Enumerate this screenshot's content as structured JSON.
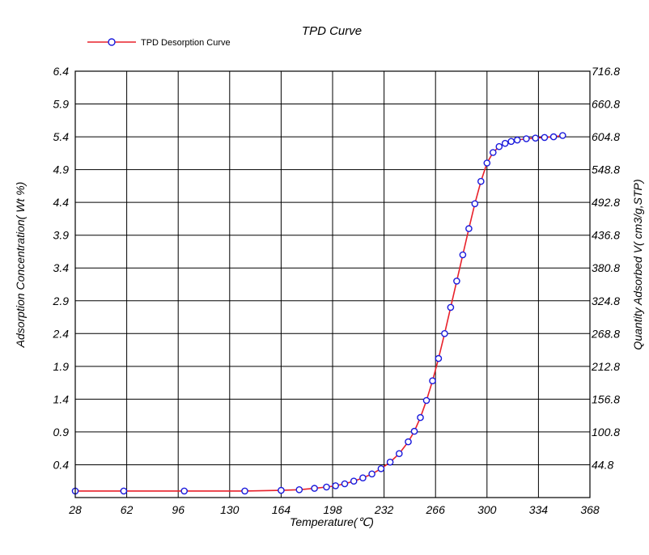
{
  "chart_data": {
    "type": "line",
    "title": "TPD Curve",
    "xlabel": "Temperature(℃)",
    "ylabel": "Adsorption Concentration( Wt %)",
    "y2label": "Quantity Adsorbed V( cm3/g,STP)",
    "xlim": [
      28,
      368
    ],
    "ylim": [
      -0.1,
      6.4
    ],
    "y2lim": [
      -11.2,
      716.8
    ],
    "x_ticks": [
      "28",
      "62",
      "96",
      "130",
      "164",
      "198",
      "232",
      "266",
      "300",
      "334",
      "368"
    ],
    "y_ticks": [
      "6.4",
      "5.9",
      "5.4",
      "4.9",
      "4.4",
      "3.9",
      "3.4",
      "2.9",
      "2.4",
      "1.9",
      "1.4",
      "0.9",
      "0.4"
    ],
    "y2_ticks": [
      "716.8",
      "660.8",
      "604.8",
      "548.8",
      "492.8",
      "436.8",
      "380.8",
      "324.8",
      "268.8",
      "212.8",
      "156.8",
      "100.8",
      "44.8"
    ],
    "grid": true,
    "legend_position": "top-left",
    "series": [
      {
        "name": "TPD Desorption Curve",
        "line_color": "#e8202a",
        "marker_color": "#1a1adc",
        "x": [
          28,
          60,
          100,
          140,
          164,
          176,
          186,
          194,
          200,
          206,
          212,
          218,
          224,
          230,
          236,
          242,
          248,
          252,
          256,
          260,
          264,
          268,
          272,
          276,
          280,
          284,
          288,
          292,
          296,
          300,
          304,
          308,
          312,
          316,
          320,
          326,
          332,
          338,
          344,
          350
        ],
        "y": [
          0.0,
          0.0,
          0.0,
          0.0,
          0.01,
          0.02,
          0.04,
          0.06,
          0.08,
          0.11,
          0.15,
          0.2,
          0.26,
          0.34,
          0.44,
          0.57,
          0.75,
          0.91,
          1.12,
          1.38,
          1.68,
          2.02,
          2.4,
          2.8,
          3.2,
          3.6,
          4.0,
          4.38,
          4.72,
          5.0,
          5.16,
          5.25,
          5.3,
          5.33,
          5.35,
          5.37,
          5.38,
          5.39,
          5.4,
          5.42
        ]
      }
    ]
  }
}
